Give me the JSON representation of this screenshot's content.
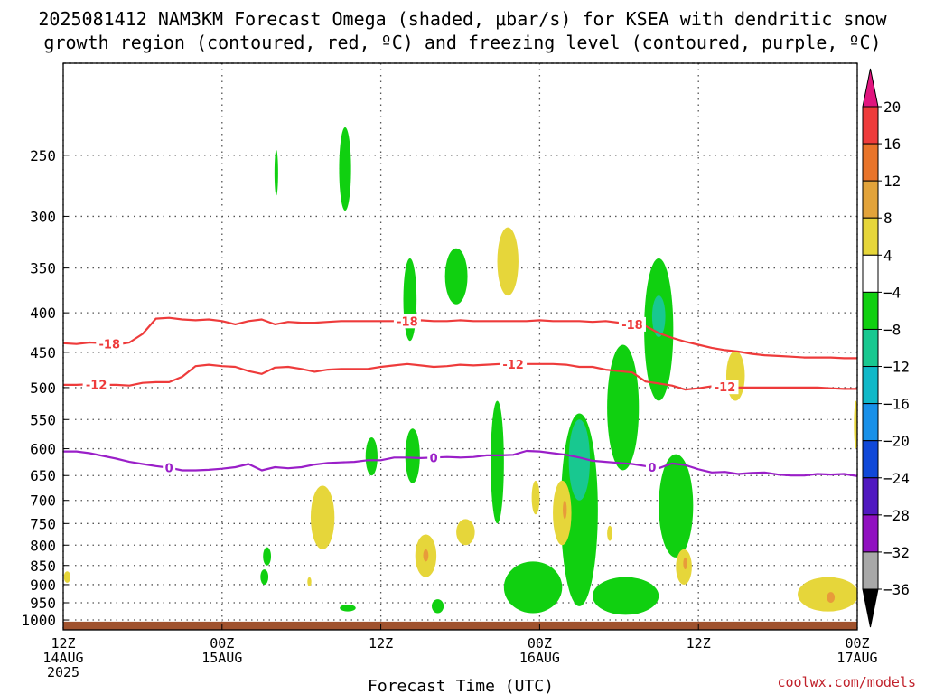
{
  "title_line1": "2025081412 NAM3KM Forecast Omega (shaded, μbar/s) for KSEA with dendritic snow",
  "title_line2": "growth region (contoured, red, ºC) and freezing level (contoured, purple, ºC)",
  "credit": "coolwx.com/models",
  "colors": {
    "isotherm_dgz": "#ee3b3b",
    "freezing_level": "#9a1fc8",
    "ground": "#a0522d",
    "omega_yellow": "#e6d63a",
    "omega_orange": "#e89b3a",
    "omega_green": "#10d010",
    "omega_teal": "#18c890",
    "omega_cyan": "#10b8c8"
  },
  "chart_data": {
    "type": "heatmap",
    "title": "2025081412 NAM3KM Forecast Omega (shaded, μbar/s) for KSEA with dendritic snow growth region (contoured, red, ºC) and freezing level (contoured, purple, ºC)",
    "xlabel": "Forecast Time (UTC)",
    "ylabel": "",
    "x_range_hours": [
      0,
      60
    ],
    "y_range_hPa": [
      1030,
      190
    ],
    "y_scale": "log-pressure",
    "grid": true,
    "x_ticks": [
      {
        "hour": 0,
        "line1": "12Z",
        "line2": "14AUG",
        "line3": "2025"
      },
      {
        "hour": 12,
        "line1": "00Z",
        "line2": "15AUG",
        "line3": ""
      },
      {
        "hour": 24,
        "line1": "12Z",
        "line2": "",
        "line3": ""
      },
      {
        "hour": 36,
        "line1": "00Z",
        "line2": "16AUG",
        "line3": ""
      },
      {
        "hour": 48,
        "line1": "12Z",
        "line2": "",
        "line3": ""
      },
      {
        "hour": 60,
        "line1": "00Z",
        "line2": "17AUG",
        "line3": ""
      }
    ],
    "y_ticks": [
      "250",
      "300",
      "350",
      "400",
      "450",
      "500",
      "550",
      "600",
      "650",
      "700",
      "750",
      "800",
      "850",
      "900",
      "950",
      "1000"
    ],
    "colorbar": {
      "labels": [
        "20",
        "16",
        "12",
        "8",
        "4",
        "−4",
        "−8",
        "−12",
        "−16",
        "−20",
        "−24",
        "−28",
        "−32",
        "−36"
      ],
      "bins": [
        {
          "lo": 20,
          "hi": null,
          "color": "#e0157e"
        },
        {
          "lo": 16,
          "hi": 20,
          "color": "#ee3b3b"
        },
        {
          "lo": 12,
          "hi": 16,
          "color": "#e8742a"
        },
        {
          "lo": 8,
          "hi": 12,
          "color": "#e2a33a"
        },
        {
          "lo": 4,
          "hi": 8,
          "color": "#e6d63a"
        },
        {
          "lo": -4,
          "hi": 4,
          "color": "#ffffff"
        },
        {
          "lo": -8,
          "hi": -4,
          "color": "#10d010"
        },
        {
          "lo": -12,
          "hi": -8,
          "color": "#18c890"
        },
        {
          "lo": -16,
          "hi": -12,
          "color": "#10b8c8"
        },
        {
          "lo": -20,
          "hi": -16,
          "color": "#1890e8"
        },
        {
          "lo": -24,
          "hi": -20,
          "color": "#1048d8"
        },
        {
          "lo": -28,
          "hi": -24,
          "color": "#5018c0"
        },
        {
          "lo": -32,
          "hi": -28,
          "color": "#9010c0"
        },
        {
          "lo": -36,
          "hi": -32,
          "color": "#a8a8a8"
        },
        {
          "lo": null,
          "hi": -36,
          "color": "#000000"
        }
      ]
    },
    "contours": [
      {
        "label": "-18",
        "color_key": "isotherm_dgz",
        "hours": [
          0,
          1,
          2,
          3,
          4,
          5,
          6,
          7,
          8,
          9,
          10,
          11,
          12,
          13,
          14,
          15,
          16,
          17,
          18,
          19,
          20,
          21,
          22,
          23,
          24,
          25,
          26,
          27,
          28,
          29,
          30,
          31,
          32,
          33,
          34,
          35,
          36,
          37,
          38,
          39,
          40,
          41,
          42,
          43,
          44,
          45,
          46,
          47,
          48,
          49,
          50,
          51,
          52,
          53,
          54,
          55,
          56,
          57,
          58,
          59,
          60
        ],
        "pressure_hPa": [
          438,
          439,
          437,
          438,
          440,
          437,
          426,
          407,
          406,
          408,
          409,
          408,
          410,
          414,
          410,
          408,
          414,
          411,
          412,
          412,
          411,
          410,
          410,
          410,
          410,
          410,
          410,
          409,
          410,
          410,
          409,
          410,
          410,
          410,
          410,
          410,
          409,
          410,
          410,
          410,
          411,
          410,
          412,
          414,
          416,
          425,
          431,
          436,
          440,
          444,
          447,
          449,
          452,
          454,
          455,
          456,
          457,
          457,
          457,
          458,
          458
        ],
        "label_hours": [
          3.5,
          26,
          43
        ]
      },
      {
        "label": "-12",
        "color_key": "isotherm_dgz",
        "hours": [
          0,
          1,
          2,
          3,
          4,
          5,
          6,
          7,
          8,
          9,
          10,
          11,
          12,
          13,
          14,
          15,
          16,
          17,
          18,
          19,
          20,
          21,
          22,
          23,
          24,
          25,
          26,
          27,
          28,
          29,
          30,
          31,
          32,
          33,
          34,
          35,
          36,
          37,
          38,
          39,
          40,
          41,
          42,
          43,
          44,
          45,
          46,
          47,
          48,
          49,
          50,
          51,
          52,
          53,
          54,
          55,
          56,
          57,
          58,
          59,
          60
        ],
        "pressure_hPa": [
          496,
          496,
          495,
          496,
          496,
          497,
          493,
          492,
          492,
          484,
          469,
          467,
          469,
          470,
          476,
          480,
          471,
          470,
          473,
          477,
          474,
          473,
          473,
          473,
          470,
          468,
          466,
          468,
          470,
          469,
          467,
          468,
          467,
          466,
          466,
          466,
          466,
          466,
          467,
          470,
          470,
          474,
          476,
          478,
          491,
          494,
          497,
          503,
          501,
          498,
          499,
          500,
          500,
          500,
          500,
          500,
          500,
          500,
          501,
          502,
          502
        ],
        "label_hours": [
          2.5,
          34,
          50
        ]
      },
      {
        "label": "0",
        "color_key": "freezing_level",
        "hours": [
          0,
          1,
          2,
          3,
          4,
          5,
          6,
          7,
          8,
          9,
          10,
          11,
          12,
          13,
          14,
          15,
          16,
          17,
          18,
          19,
          20,
          21,
          22,
          23,
          24,
          25,
          26,
          27,
          28,
          29,
          30,
          31,
          32,
          33,
          34,
          35,
          36,
          37,
          38,
          39,
          40,
          41,
          42,
          43,
          44,
          45,
          46,
          47,
          48,
          49,
          50,
          51,
          52,
          53,
          54,
          55,
          56,
          57,
          58,
          59,
          60
        ],
        "pressure_hPa": [
          605,
          605,
          608,
          613,
          618,
          624,
          628,
          632,
          635,
          640,
          640,
          639,
          637,
          634,
          628,
          640,
          634,
          636,
          634,
          629,
          626,
          625,
          624,
          621,
          621,
          616,
          616,
          617,
          616,
          615,
          616,
          615,
          612,
          612,
          611,
          604,
          605,
          608,
          611,
          616,
          622,
          624,
          626,
          628,
          632,
          636,
          627,
          630,
          638,
          644,
          643,
          647,
          645,
          644,
          648,
          650,
          650,
          647,
          648,
          647,
          651
        ],
        "label_hours": [
          8,
          28,
          44.5
        ]
      }
    ],
    "omega_regions": [
      {
        "bin": "-8 to -4",
        "color_key": "omega_green",
        "hour_center": 16.1,
        "pressure_center_hPa": 262,
        "hour_halfwidth": 0.12,
        "pressure_span_hPa": [
          246,
          282
        ]
      },
      {
        "bin": "-8 to -4",
        "color_key": "omega_green",
        "hour_center": 21.3,
        "pressure_center_hPa": 255,
        "hour_halfwidth": 0.45,
        "pressure_span_hPa": [
          230,
          295
        ]
      },
      {
        "bin": "-8 to -4",
        "color_key": "omega_green",
        "hour_center": 26.2,
        "pressure_center_hPa": 385,
        "hour_halfwidth": 0.5,
        "pressure_span_hPa": [
          340,
          435
        ]
      },
      {
        "bin": "-8 to -4",
        "color_key": "omega_green",
        "hour_center": 29.7,
        "pressure_center_hPa": 360,
        "hour_halfwidth": 0.85,
        "pressure_span_hPa": [
          330,
          390
        ]
      },
      {
        "bin": "4 to 8",
        "color_key": "omega_yellow",
        "hour_center": 33.6,
        "pressure_center_hPa": 345,
        "hour_halfwidth": 0.8,
        "pressure_span_hPa": [
          310,
          380
        ]
      },
      {
        "bin": "4 to 8",
        "color_key": "omega_yellow",
        "hour_center": 50.8,
        "pressure_center_hPa": 480,
        "hour_halfwidth": 0.7,
        "pressure_span_hPa": [
          448,
          520
        ]
      },
      {
        "bin": "-8 to -4",
        "color_key": "omega_green",
        "hour_center": 23.3,
        "pressure_center_hPa": 612,
        "hour_halfwidth": 0.45,
        "pressure_span_hPa": [
          580,
          650
        ]
      },
      {
        "bin": "-8 to -4",
        "color_key": "omega_green",
        "hour_center": 26.4,
        "pressure_center_hPa": 615,
        "hour_halfwidth": 0.55,
        "pressure_span_hPa": [
          565,
          665
        ]
      },
      {
        "bin": "-8 to -4",
        "color_key": "omega_green",
        "hour_center": 32.8,
        "pressure_center_hPa": 620,
        "hour_halfwidth": 0.5,
        "pressure_span_hPa": [
          520,
          750
        ]
      },
      {
        "bin": "-8 to -4",
        "color_key": "omega_green",
        "hour_center": 39.0,
        "pressure_center_hPa": 700,
        "hour_halfwidth": 1.4,
        "pressure_span_hPa": [
          540,
          960
        ]
      },
      {
        "bin": "-12 to -8",
        "color_key": "omega_teal",
        "hour_center": 39.0,
        "pressure_center_hPa": 610,
        "hour_halfwidth": 0.8,
        "pressure_span_hPa": [
          550,
          700
        ]
      },
      {
        "bin": "-8 to -4",
        "color_key": "omega_green",
        "hour_center": 42.3,
        "pressure_center_hPa": 540,
        "hour_halfwidth": 1.2,
        "pressure_span_hPa": [
          440,
          640
        ]
      },
      {
        "bin": "-8 to -4",
        "color_key": "omega_green",
        "hour_center": 45.0,
        "pressure_center_hPa": 420,
        "hour_halfwidth": 1.1,
        "pressure_span_hPa": [
          340,
          520
        ]
      },
      {
        "bin": "-12 to -8",
        "color_key": "omega_teal",
        "hour_center": 45.0,
        "pressure_center_hPa": 400,
        "hour_halfwidth": 0.5,
        "pressure_span_hPa": [
          380,
          430
        ]
      },
      {
        "bin": "-8 to -4",
        "color_key": "omega_green",
        "hour_center": 46.3,
        "pressure_center_hPa": 720,
        "hour_halfwidth": 1.3,
        "pressure_span_hPa": [
          610,
          830
        ]
      },
      {
        "bin": "-8 to -4",
        "color_key": "omega_green",
        "hour_center": 35.5,
        "pressure_center_hPa": 920,
        "hour_halfwidth": 2.2,
        "pressure_span_hPa": [
          840,
          980
        ]
      },
      {
        "bin": "-8 to -4",
        "color_key": "omega_green",
        "hour_center": 42.5,
        "pressure_center_hPa": 930,
        "hour_halfwidth": 2.5,
        "pressure_span_hPa": [
          880,
          985
        ]
      },
      {
        "bin": "-8 to -4",
        "color_key": "omega_green",
        "hour_center": 15.4,
        "pressure_center_hPa": 825,
        "hour_halfwidth": 0.3,
        "pressure_span_hPa": [
          805,
          850
        ]
      },
      {
        "bin": "-8 to -4",
        "color_key": "omega_green",
        "hour_center": 15.2,
        "pressure_center_hPa": 880,
        "hour_halfwidth": 0.3,
        "pressure_span_hPa": [
          860,
          900
        ]
      },
      {
        "bin": "-8 to -4",
        "color_key": "omega_green",
        "hour_center": 28.3,
        "pressure_center_hPa": 960,
        "hour_halfwidth": 0.45,
        "pressure_span_hPa": [
          940,
          980
        ]
      },
      {
        "bin": "-8 to -4",
        "color_key": "omega_green",
        "hour_center": 21.5,
        "pressure_center_hPa": 965,
        "hour_halfwidth": 0.6,
        "pressure_span_hPa": [
          955,
          975
        ]
      },
      {
        "bin": "4 to 8",
        "color_key": "omega_yellow",
        "hour_center": 19.6,
        "pressure_center_hPa": 730,
        "hour_halfwidth": 0.9,
        "pressure_span_hPa": [
          670,
          810
        ]
      },
      {
        "bin": "4 to 8",
        "color_key": "omega_yellow",
        "hour_center": 27.4,
        "pressure_center_hPa": 825,
        "hour_halfwidth": 0.8,
        "pressure_span_hPa": [
          775,
          880
        ]
      },
      {
        "bin": "8 to 12",
        "color_key": "omega_orange",
        "hour_center": 27.4,
        "pressure_center_hPa": 825,
        "hour_halfwidth": 0.2,
        "pressure_span_hPa": [
          810,
          840
        ]
      },
      {
        "bin": "4 to 8",
        "color_key": "omega_yellow",
        "hour_center": 30.4,
        "pressure_center_hPa": 770,
        "hour_halfwidth": 0.7,
        "pressure_span_hPa": [
          740,
          800
        ]
      },
      {
        "bin": "4 to 8",
        "color_key": "omega_yellow",
        "hour_center": 35.7,
        "pressure_center_hPa": 690,
        "hour_halfwidth": 0.3,
        "pressure_span_hPa": [
          660,
          730
        ]
      },
      {
        "bin": "4 to 8",
        "color_key": "omega_yellow",
        "hour_center": 37.7,
        "pressure_center_hPa": 720,
        "hour_halfwidth": 0.7,
        "pressure_span_hPa": [
          660,
          800
        ]
      },
      {
        "bin": "8 to 12",
        "color_key": "omega_orange",
        "hour_center": 37.9,
        "pressure_center_hPa": 720,
        "hour_halfwidth": 0.15,
        "pressure_span_hPa": [
          700,
          740
        ]
      },
      {
        "bin": "4 to 8",
        "color_key": "omega_yellow",
        "hour_center": 41.3,
        "pressure_center_hPa": 770,
        "hour_halfwidth": 0.2,
        "pressure_span_hPa": [
          755,
          790
        ]
      },
      {
        "bin": "4 to 8",
        "color_key": "omega_yellow",
        "hour_center": 46.9,
        "pressure_center_hPa": 850,
        "hour_halfwidth": 0.6,
        "pressure_span_hPa": [
          810,
          900
        ]
      },
      {
        "bin": "8 to 12",
        "color_key": "omega_orange",
        "hour_center": 47.0,
        "pressure_center_hPa": 845,
        "hour_halfwidth": 0.15,
        "pressure_span_hPa": [
          830,
          860
        ]
      },
      {
        "bin": "4 to 8",
        "color_key": "omega_yellow",
        "hour_center": 57.8,
        "pressure_center_hPa": 930,
        "hour_halfwidth": 2.3,
        "pressure_span_hPa": [
          880,
          975
        ]
      },
      {
        "bin": "8 to 12",
        "color_key": "omega_orange",
        "hour_center": 58.0,
        "pressure_center_hPa": 935,
        "hour_halfwidth": 0.3,
        "pressure_span_hPa": [
          920,
          950
        ]
      },
      {
        "bin": "4 to 8",
        "color_key": "omega_yellow",
        "hour_center": 0.3,
        "pressure_center_hPa": 880,
        "hour_halfwidth": 0.25,
        "pressure_span_hPa": [
          865,
          895
        ]
      },
      {
        "bin": "4 to 8",
        "color_key": "omega_yellow",
        "hour_center": 18.6,
        "pressure_center_hPa": 890,
        "hour_halfwidth": 0.15,
        "pressure_span_hPa": [
          880,
          905
        ]
      },
      {
        "bin": "4 to 8",
        "color_key": "omega_yellow",
        "hour_center": 59.9,
        "pressure_center_hPa": 560,
        "hour_halfwidth": 0.15,
        "pressure_span_hPa": [
          520,
          600
        ]
      }
    ],
    "surface": {
      "label": "",
      "pressure_top_hPa": 1005,
      "color_key": "ground"
    }
  }
}
